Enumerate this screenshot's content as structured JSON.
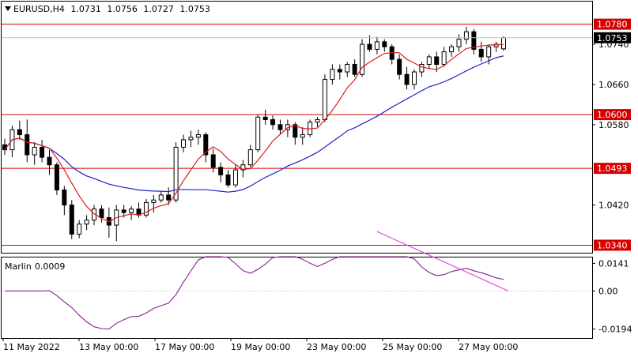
{
  "header": {
    "symbol": "EURUSD,H4",
    "ohlc": [
      "1.0731",
      "1.0756",
      "1.0727",
      "1.0753"
    ]
  },
  "indicator": {
    "name": "Marlin",
    "value": "0.0009"
  },
  "colors": {
    "bull_candle": "#ffffff",
    "bear_candle": "#000000",
    "level_line": "#d40000",
    "fast_ma": "#dc1e1e",
    "slow_ma": "#1c22c8",
    "oscillator": "#8c1e96",
    "divergence": "#e040e0",
    "current_price_bg": "#000000"
  },
  "chart_data": {
    "type": "candlestick",
    "price_axis": {
      "ticks": [
        "1.0740",
        "1.0660",
        "1.0580",
        "1.0420"
      ],
      "range": [
        1.0325,
        1.0825
      ]
    },
    "level_lines": [
      {
        "label": "1.0780",
        "value": 1.078
      },
      {
        "label": "1.0600",
        "value": 1.06
      },
      {
        "label": "1.0493",
        "value": 1.0493
      },
      {
        "label": "1.0340",
        "value": 1.034
      }
    ],
    "current_price": {
      "label": "1.0753",
      "value": 1.0753
    },
    "x_labels": [
      "11 May 2022",
      "13 May 00:00",
      "17 May 00:00",
      "19 May 00:00",
      "23 May 00:00",
      "25 May 00:00",
      "27 May 00:00"
    ],
    "candles": [
      [
        1.054,
        1.0552,
        1.052,
        1.053
      ],
      [
        1.053,
        1.0578,
        1.0515,
        1.057
      ],
      [
        1.057,
        1.0588,
        1.055,
        1.056
      ],
      [
        1.056,
        1.059,
        1.0505,
        1.052
      ],
      [
        1.052,
        1.0545,
        1.05,
        1.0535
      ],
      [
        1.0535,
        1.055,
        1.0505,
        1.0515
      ],
      [
        1.0515,
        1.053,
        1.048,
        1.05
      ],
      [
        1.05,
        1.0505,
        1.044,
        1.045
      ],
      [
        1.045,
        1.0458,
        1.04,
        1.042
      ],
      [
        1.042,
        1.043,
        1.0352,
        1.0362
      ],
      [
        1.0362,
        1.039,
        1.0354,
        1.0382
      ],
      [
        1.0382,
        1.04,
        1.037,
        1.039
      ],
      [
        1.039,
        1.042,
        1.038,
        1.0412
      ],
      [
        1.0412,
        1.042,
        1.0385,
        1.0395
      ],
      [
        1.0395,
        1.0415,
        1.0355,
        1.038
      ],
      [
        1.038,
        1.042,
        1.0348,
        1.041
      ],
      [
        1.041,
        1.042,
        1.0395,
        1.0405
      ],
      [
        1.0405,
        1.0418,
        1.039,
        1.0412
      ],
      [
        1.0412,
        1.0425,
        1.0395,
        1.04
      ],
      [
        1.04,
        1.0432,
        1.0395,
        1.0425
      ],
      [
        1.0425,
        1.044,
        1.0405,
        1.043
      ],
      [
        1.043,
        1.0448,
        1.0425,
        1.044
      ],
      [
        1.044,
        1.0455,
        1.042,
        1.043
      ],
      [
        1.043,
        1.0545,
        1.0425,
        1.0535
      ],
      [
        1.0535,
        1.056,
        1.0525,
        1.055
      ],
      [
        1.055,
        1.0568,
        1.0535,
        1.0555
      ],
      [
        1.0555,
        1.057,
        1.054,
        1.056
      ],
      [
        1.056,
        1.0565,
        1.0505,
        1.052
      ],
      [
        1.052,
        1.0532,
        1.0485,
        1.0495
      ],
      [
        1.0495,
        1.0505,
        1.0465,
        1.048
      ],
      [
        1.048,
        1.049,
        1.0455,
        1.046
      ],
      [
        1.046,
        1.05,
        1.0455,
        1.049
      ],
      [
        1.049,
        1.051,
        1.0475,
        1.05
      ],
      [
        1.05,
        1.054,
        1.0495,
        1.053
      ],
      [
        1.053,
        1.06,
        1.0525,
        1.0595
      ],
      [
        1.0595,
        1.061,
        1.058,
        1.059
      ],
      [
        1.059,
        1.0598,
        1.057,
        1.058
      ],
      [
        1.058,
        1.059,
        1.056,
        1.057
      ],
      [
        1.057,
        1.059,
        1.0555,
        1.058
      ],
      [
        1.058,
        1.0585,
        1.054,
        1.0555
      ],
      [
        1.0555,
        1.0575,
        1.054,
        1.056
      ],
      [
        1.056,
        1.059,
        1.0555,
        1.0585
      ],
      [
        1.0585,
        1.0595,
        1.0575,
        1.059
      ],
      [
        1.059,
        1.068,
        1.0585,
        1.067
      ],
      [
        1.067,
        1.07,
        1.066,
        1.069
      ],
      [
        1.069,
        1.07,
        1.067,
        1.0685
      ],
      [
        1.0685,
        1.0705,
        1.0675,
        1.07
      ],
      [
        1.07,
        1.071,
        1.0675,
        1.068
      ],
      [
        1.068,
        1.075,
        1.0675,
        1.074
      ],
      [
        1.074,
        1.0758,
        1.0725,
        1.073
      ],
      [
        1.073,
        1.0755,
        1.072,
        1.0745
      ],
      [
        1.0745,
        1.075,
        1.0725,
        1.0735
      ],
      [
        1.0735,
        1.074,
        1.07,
        1.071
      ],
      [
        1.071,
        1.072,
        1.067,
        1.068
      ],
      [
        1.068,
        1.0695,
        1.065,
        1.066
      ],
      [
        1.066,
        1.069,
        1.065,
        1.0685
      ],
      [
        1.0685,
        1.0705,
        1.0675,
        1.07
      ],
      [
        1.07,
        1.072,
        1.069,
        1.0715
      ],
      [
        1.0715,
        1.0725,
        1.0685,
        1.07
      ],
      [
        1.07,
        1.0735,
        1.0695,
        1.0725
      ],
      [
        1.0725,
        1.074,
        1.0715,
        1.0735
      ],
      [
        1.0735,
        1.076,
        1.0725,
        1.075
      ],
      [
        1.075,
        1.0775,
        1.074,
        1.0765
      ],
      [
        1.0765,
        1.077,
        1.072,
        1.073
      ],
      [
        1.073,
        1.0745,
        1.0705,
        1.0715
      ],
      [
        1.0715,
        1.074,
        1.07,
        1.0735
      ],
      [
        1.0735,
        1.0745,
        1.0725,
        1.074
      ],
      [
        1.0731,
        1.0756,
        1.0727,
        1.0753
      ]
    ],
    "indicator_axis": {
      "ticks": [
        "0.0141",
        "0.00",
        "-0.0194"
      ],
      "range": [
        -0.024,
        0.0175
      ]
    }
  }
}
